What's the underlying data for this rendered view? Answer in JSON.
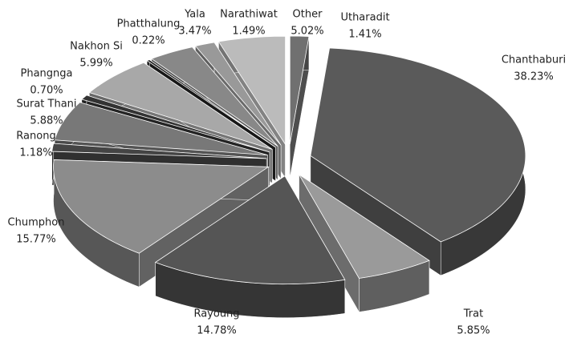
{
  "chart_data": {
    "type": "pie3d",
    "categories": [
      "Utharadit",
      "Chanthaburi",
      "Trat",
      "Rayoung",
      "Chumphon",
      "Ranong",
      "Surat Thani",
      "Phangnga",
      "Nakhon Si",
      "Phatthalung",
      "Yala",
      "Narathiwat",
      "Other"
    ],
    "values": [
      1.41,
      38.23,
      5.85,
      14.78,
      15.77,
      1.18,
      5.88,
      0.7,
      5.99,
      0.22,
      3.47,
      1.49,
      5.02
    ],
    "value_labels": [
      "1.41%",
      "38.23%",
      "5.85%",
      "14.78%",
      "15.77%",
      "1.18%",
      "5.88%",
      "0.70%",
      "5.99%",
      "0.22%",
      "3.47%",
      "1.49%",
      "5.02%"
    ],
    "colors": [
      "#707070",
      "#5a5a5a",
      "#9a9a9a",
      "#555555",
      "#8c8c8c",
      "#444444",
      "#787878",
      "#333333",
      "#a8a8a8",
      "#222222",
      "#888888",
      "#999999",
      "#bbbbbb"
    ]
  }
}
